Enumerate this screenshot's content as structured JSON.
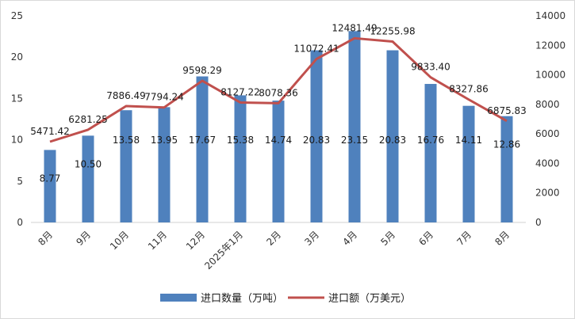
{
  "chart_data": {
    "type": "bar",
    "categories": [
      "8月",
      "9月",
      "10月",
      "11月",
      "12月",
      "2025年1月",
      "2月",
      "3月",
      "4月",
      "5月",
      "6月",
      "7月",
      "8月"
    ],
    "series": [
      {
        "name": "进口数量（万吨）",
        "type": "bar",
        "axis": "left",
        "color": "#4f81bd",
        "values": [
          8.77,
          10.5,
          13.58,
          13.95,
          17.67,
          15.38,
          14.74,
          20.83,
          23.15,
          20.83,
          16.76,
          14.11,
          12.86
        ],
        "labels": [
          "8.77",
          "10.50",
          "13.58",
          "13.95",
          "17.67",
          "15.38",
          "14.74",
          "20.83",
          "23.15",
          "20.83",
          "16.76",
          "14.11",
          "12.86"
        ]
      },
      {
        "name": "进口额（万美元）",
        "type": "line",
        "axis": "right",
        "color": "#c0504d",
        "values": [
          5471.42,
          6281.25,
          7886.49,
          7794.24,
          9598.29,
          8127.22,
          8078.36,
          11072.41,
          12481.49,
          12255.98,
          9833.4,
          8327.86,
          6875.83
        ],
        "labels": [
          "5471.42",
          "6281.25",
          "7886.49",
          "7794.24",
          "9598.29",
          "8127.22",
          "8078.36",
          "11072.41",
          "12481.49",
          "12255.98",
          "9833.40",
          "8327.86",
          "6875.83"
        ]
      }
    ],
    "y_left": {
      "min": 0,
      "max": 25,
      "ticks": [
        "0",
        "5",
        "10",
        "15",
        "20",
        "25"
      ]
    },
    "y_right": {
      "min": 0,
      "max": 14000,
      "ticks": [
        "0",
        "2000",
        "4000",
        "6000",
        "8000",
        "10000",
        "12000",
        "14000"
      ]
    },
    "grid": false,
    "legend_position": "bottom"
  }
}
